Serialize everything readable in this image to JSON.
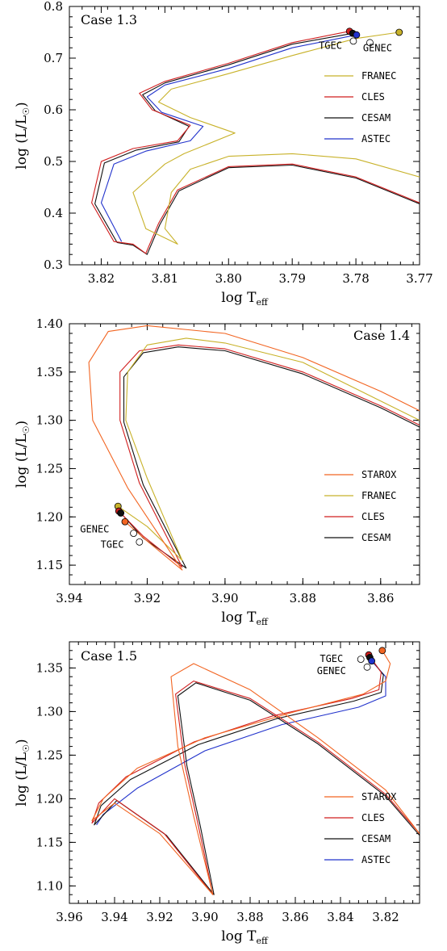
{
  "colors": {
    "STAROX": "#f26522",
    "FRANEC": "#c8b22a",
    "CLES": "#d11f1f",
    "CESAM": "#111111",
    "ASTEC": "#2233cc"
  },
  "chart_data": [
    {
      "type": "line",
      "title": "Case 1.3",
      "xlabel": "log T",
      "xlabel_sub": "eff",
      "ylabel_main": "log (L/L",
      "ylabel_sun": "☉",
      "ylabel_close": ")",
      "xlim": [
        3.825,
        3.77
      ],
      "ylim": [
        0.3,
        0.8
      ],
      "xticks": [
        3.82,
        3.81,
        3.8,
        3.79,
        3.78,
        3.77
      ],
      "xticklabels": [
        "3.82",
        "3.81",
        "3.80",
        "3.79",
        "3.78",
        "3.77"
      ],
      "yticks": [
        0.3,
        0.4,
        0.5,
        0.6,
        0.7,
        0.8
      ],
      "yticklabels": [
        "0.3",
        "0.4",
        "0.5",
        "0.6",
        "0.7",
        "0.8"
      ],
      "legend_position": "right",
      "series": [
        {
          "name": "FRANEC",
          "color_key": "FRANEC",
          "x": [
            3.7732,
            3.78,
            3.79,
            3.8,
            3.809,
            3.811,
            3.806,
            3.799,
            3.807,
            3.81,
            3.815,
            3.813,
            3.808,
            3.81,
            3.809,
            3.806,
            3.8,
            3.79,
            3.78,
            3.77
          ],
          "y": [
            0.75,
            0.738,
            0.705,
            0.67,
            0.64,
            0.615,
            0.585,
            0.555,
            0.515,
            0.495,
            0.44,
            0.37,
            0.34,
            0.37,
            0.44,
            0.485,
            0.51,
            0.515,
            0.505,
            0.47
          ]
        },
        {
          "name": "CLES",
          "color_key": "CLES",
          "x": [
            3.781,
            3.79,
            3.8,
            3.81,
            3.814,
            3.812,
            3.806,
            3.808,
            3.815,
            3.82,
            3.8215,
            3.818,
            3.815,
            3.813,
            3.811,
            3.808,
            3.8,
            3.79,
            3.78,
            3.77
          ],
          "y": [
            0.752,
            0.73,
            0.69,
            0.655,
            0.632,
            0.6,
            0.57,
            0.54,
            0.525,
            0.5,
            0.42,
            0.345,
            0.34,
            0.322,
            0.38,
            0.445,
            0.49,
            0.495,
            0.47,
            0.42
          ]
        },
        {
          "name": "CESAM",
          "color_key": "CESAM",
          "x": [
            3.7805,
            3.79,
            3.8,
            3.81,
            3.8135,
            3.8115,
            3.8062,
            3.8078,
            3.8145,
            3.8195,
            3.821,
            3.8175,
            3.815,
            3.8128,
            3.8108,
            3.8078,
            3.8,
            3.79,
            3.78,
            3.77
          ],
          "y": [
            0.748,
            0.727,
            0.687,
            0.652,
            0.629,
            0.598,
            0.568,
            0.538,
            0.522,
            0.497,
            0.418,
            0.343,
            0.338,
            0.32,
            0.378,
            0.443,
            0.488,
            0.493,
            0.468,
            0.418
          ]
        },
        {
          "name": "ASTEC",
          "color_key": "ASTEC",
          "x": [
            3.7799,
            3.79,
            3.8,
            3.81,
            3.8128,
            3.8105,
            3.804,
            3.806,
            3.813,
            3.818,
            3.82,
            3.8168
          ],
          "y": [
            0.745,
            0.72,
            0.68,
            0.648,
            0.625,
            0.595,
            0.568,
            0.54,
            0.52,
            0.495,
            0.42,
            0.345
          ]
        }
      ],
      "endpoints": [
        {
          "series": "FRANEC",
          "x": 3.7732,
          "y": 0.75,
          "filled": true
        },
        {
          "series": "CLES",
          "x": 3.781,
          "y": 0.752,
          "filled": true
        },
        {
          "series": "CESAM",
          "x": 3.7805,
          "y": 0.748,
          "filled": true
        },
        {
          "series": "ASTEC",
          "x": 3.7799,
          "y": 0.745,
          "filled": true
        },
        {
          "series": "TGEC",
          "x": 3.7804,
          "y": 0.733,
          "filled": false
        },
        {
          "series": "GENEC",
          "x": 3.7778,
          "y": 0.73,
          "filled": false
        }
      ],
      "annotations": [
        {
          "text": "TGEC",
          "x": 3.784,
          "y": 0.718
        },
        {
          "text": "GENEC",
          "x": 3.7766,
          "y": 0.713
        }
      ],
      "legend": [
        "FRANEC",
        "CLES",
        "CESAM",
        "ASTEC"
      ]
    },
    {
      "type": "line",
      "title": "Case 1.4",
      "xlabel": "log T",
      "xlabel_sub": "eff",
      "ylabel_main": "log (L/L",
      "ylabel_sun": "☉",
      "ylabel_close": ")",
      "xlim": [
        3.94,
        3.85
      ],
      "ylim": [
        1.13,
        1.4
      ],
      "xticks": [
        3.94,
        3.92,
        3.9,
        3.88,
        3.86
      ],
      "xticklabels": [
        "3.94",
        "3.92",
        "3.90",
        "3.88",
        "3.86"
      ],
      "yticks": [
        1.15,
        1.2,
        1.25,
        1.3,
        1.35,
        1.4
      ],
      "yticklabels": [
        "1.15",
        "1.20",
        "1.25",
        "1.30",
        "1.35",
        "1.40"
      ],
      "legend_position": "right",
      "series": [
        {
          "name": "STAROX",
          "color_key": "STAROX",
          "x": [
            3.9257,
            3.92,
            3.911,
            3.925,
            3.934,
            3.935,
            3.93,
            3.92,
            3.9,
            3.88,
            3.86,
            3.85
          ],
          "y": [
            1.195,
            1.175,
            1.145,
            1.23,
            1.3,
            1.36,
            1.392,
            1.398,
            1.39,
            1.365,
            1.33,
            1.31
          ]
        },
        {
          "name": "FRANEC",
          "color_key": "FRANEC",
          "x": [
            3.9275,
            3.92,
            3.911,
            3.92,
            3.9255,
            3.925,
            3.92,
            3.91,
            3.9,
            3.88,
            3.86,
            3.85
          ],
          "y": [
            1.211,
            1.19,
            1.155,
            1.24,
            1.3,
            1.35,
            1.378,
            1.385,
            1.38,
            1.36,
            1.32,
            1.3
          ]
        },
        {
          "name": "CLES",
          "color_key": "CLES",
          "x": [
            3.9273,
            3.921,
            3.911,
            3.922,
            3.927,
            3.927,
            3.922,
            3.912,
            3.9,
            3.88,
            3.86,
            3.85
          ],
          "y": [
            1.206,
            1.18,
            1.148,
            1.235,
            1.3,
            1.35,
            1.372,
            1.378,
            1.374,
            1.35,
            1.315,
            1.295
          ]
        },
        {
          "name": "CESAM",
          "color_key": "CESAM",
          "x": [
            3.927,
            3.921,
            3.91,
            3.921,
            3.926,
            3.926,
            3.921,
            3.912,
            3.9,
            3.88,
            3.86,
            3.85
          ],
          "y": [
            1.205,
            1.178,
            1.147,
            1.233,
            1.298,
            1.345,
            1.37,
            1.376,
            1.372,
            1.348,
            1.313,
            1.293
          ]
        }
      ],
      "endpoints": [
        {
          "series": "FRANEC",
          "x": 3.9275,
          "y": 1.211,
          "filled": true
        },
        {
          "series": "CLES",
          "x": 3.9273,
          "y": 1.206,
          "filled": true
        },
        {
          "series": "CESAM",
          "x": 3.9268,
          "y": 1.204,
          "filled": true
        },
        {
          "series": "STAROX",
          "x": 3.9257,
          "y": 1.195,
          "filled": true
        },
        {
          "series": "GENEC",
          "x": 3.9235,
          "y": 1.183,
          "filled": false
        },
        {
          "series": "TGEC",
          "x": 3.922,
          "y": 1.174,
          "filled": false
        }
      ],
      "annotations": [
        {
          "text": "GENEC",
          "x": 3.9335,
          "y": 1.184
        },
        {
          "text": "TGEC",
          "x": 3.929,
          "y": 1.168
        }
      ],
      "legend": [
        "STAROX",
        "FRANEC",
        "CLES",
        "CESAM"
      ]
    },
    {
      "type": "line",
      "title": "Case 1.5",
      "xlabel": "log T",
      "xlabel_sub": "eff",
      "ylabel_main": "log (L/L",
      "ylabel_sun": "☉",
      "ylabel_close": ")",
      "xlim": [
        3.96,
        3.805
      ],
      "ylim": [
        1.08,
        1.38
      ],
      "xticks": [
        3.96,
        3.94,
        3.92,
        3.9,
        3.88,
        3.86,
        3.84,
        3.82
      ],
      "xticklabels": [
        "3.96",
        "3.94",
        "3.92",
        "3.90",
        "3.88",
        "3.86",
        "3.84",
        "3.82"
      ],
      "yticks": [
        1.1,
        1.15,
        1.2,
        1.25,
        1.3,
        1.35
      ],
      "yticklabels": [
        "1.10",
        "1.15",
        "1.20",
        "1.25",
        "1.30",
        "1.35"
      ],
      "legend_position": "right",
      "series": [
        {
          "name": "STAROX",
          "color_key": "STAROX",
          "x": [
            3.8215,
            3.818,
            3.82,
            3.83,
            3.86,
            3.9,
            3.93,
            3.945,
            3.95,
            3.94,
            3.92,
            3.8965,
            3.905,
            3.912,
            3.915,
            3.905,
            3.88,
            3.85,
            3.82,
            3.805
          ],
          "y": [
            1.37,
            1.355,
            1.335,
            1.32,
            1.3,
            1.27,
            1.235,
            1.2,
            1.175,
            1.195,
            1.16,
            1.09,
            1.18,
            1.26,
            1.34,
            1.355,
            1.325,
            1.27,
            1.21,
            1.16
          ]
        },
        {
          "name": "CLES",
          "color_key": "CLES",
          "x": [
            3.8275,
            3.822,
            3.823,
            3.835,
            3.87,
            3.905,
            3.935,
            3.947,
            3.95,
            3.94,
            3.918,
            3.8965,
            3.903,
            3.909,
            3.913,
            3.905,
            3.88,
            3.85,
            3.82,
            3.805
          ],
          "y": [
            1.365,
            1.345,
            1.325,
            1.315,
            1.295,
            1.265,
            1.225,
            1.195,
            1.172,
            1.2,
            1.16,
            1.09,
            1.17,
            1.24,
            1.32,
            1.335,
            1.315,
            1.265,
            1.205,
            1.16
          ]
        },
        {
          "name": "CESAM",
          "color_key": "CESAM",
          "x": [
            3.827,
            3.821,
            3.822,
            3.834,
            3.868,
            3.903,
            3.933,
            3.946,
            3.949,
            3.939,
            3.917,
            3.896,
            3.902,
            3.908,
            3.912,
            3.904,
            3.88,
            3.85,
            3.82,
            3.805
          ],
          "y": [
            1.362,
            1.342,
            1.322,
            1.312,
            1.292,
            1.262,
            1.222,
            1.192,
            1.17,
            1.198,
            1.158,
            1.09,
            1.168,
            1.238,
            1.318,
            1.333,
            1.313,
            1.263,
            1.203,
            1.158
          ]
        },
        {
          "name": "ASTEC",
          "color_key": "ASTEC",
          "x": [
            3.8262,
            3.82,
            3.82,
            3.832,
            3.866,
            3.9,
            3.93,
            3.945,
            3.948
          ],
          "y": [
            1.358,
            1.34,
            1.318,
            1.305,
            1.285,
            1.255,
            1.212,
            1.182,
            1.17
          ]
        }
      ],
      "endpoints": [
        {
          "series": "STAROX",
          "x": 3.8215,
          "y": 1.37,
          "filled": true
        },
        {
          "series": "CLES",
          "x": 3.8275,
          "y": 1.365,
          "filled": true
        },
        {
          "series": "CESAM",
          "x": 3.827,
          "y": 1.362,
          "filled": true
        },
        {
          "series": "ASTEC",
          "x": 3.8262,
          "y": 1.358,
          "filled": true
        },
        {
          "series": "TGEC",
          "x": 3.831,
          "y": 1.36,
          "filled": false
        },
        {
          "series": "GENEC",
          "x": 3.8282,
          "y": 1.351,
          "filled": false
        }
      ],
      "annotations": [
        {
          "text": "TGEC",
          "x": 3.844,
          "y": 1.357
        },
        {
          "text": "GENEC",
          "x": 3.844,
          "y": 1.343
        }
      ],
      "legend": [
        "STAROX",
        "CLES",
        "CESAM",
        "ASTEC"
      ]
    }
  ]
}
